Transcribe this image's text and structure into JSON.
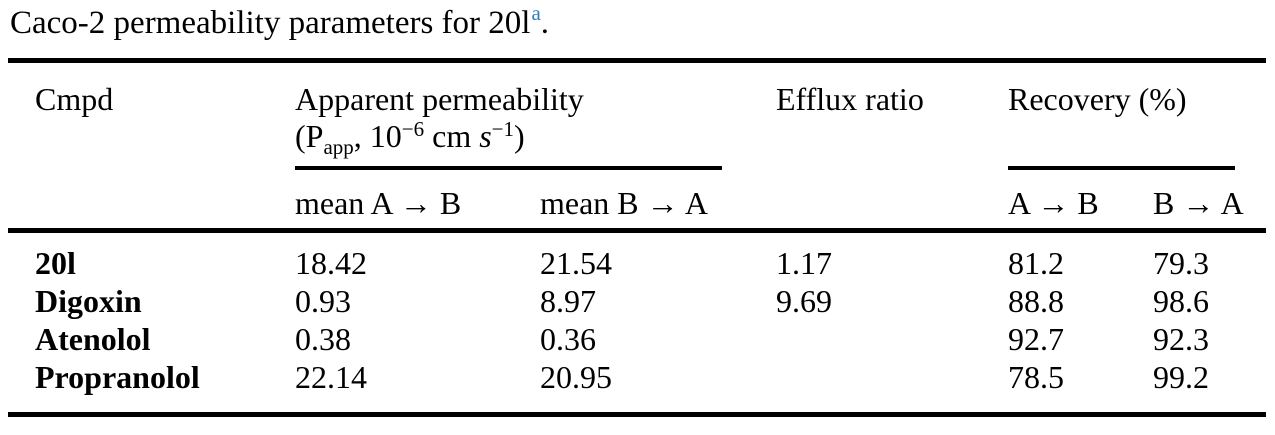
{
  "colors": {
    "text": "#000000",
    "rule": "#000000",
    "footnote_marker": "#2e7eb8",
    "background": "#ffffff"
  },
  "caption": {
    "text": "Caco-2 permeability parameters for 20l",
    "footnote_marker": "a",
    "period": "."
  },
  "table": {
    "headers": {
      "cmpd": "Cmpd",
      "apparent_permeability_line1": "Apparent permeability",
      "apparent_permeability_units": {
        "open_paren_p": "(P",
        "sub": "app",
        "comma_base": ", 10",
        "exp1": "−6",
        "cm": " cm ",
        "s": "s",
        "exp2": "−1",
        "close_paren": ")"
      },
      "efflux_ratio": "Efflux ratio",
      "recovery": "Recovery (%)",
      "sub_headers": {
        "mean_a_to_b": "mean A → B",
        "mean_b_to_a": "mean B → A",
        "recovery_a_to_b": "A → B",
        "recovery_b_to_a": "B → A"
      }
    },
    "rows": [
      {
        "name": "20l",
        "mean_ab": "18.42",
        "mean_ba": "21.54",
        "efflux": "1.17",
        "rec_ab": "81.2",
        "rec_ba": "79.3"
      },
      {
        "name": "Digoxin",
        "mean_ab": "0.93",
        "mean_ba": "8.97",
        "efflux": "9.69",
        "rec_ab": "88.8",
        "rec_ba": "98.6"
      },
      {
        "name": "Atenolol",
        "mean_ab": "0.38",
        "mean_ba": "0.36",
        "efflux": "",
        "rec_ab": "92.7",
        "rec_ba": "92.3"
      },
      {
        "name": "Propranolol",
        "mean_ab": "22.14",
        "mean_ba": "20.95",
        "efflux": "",
        "rec_ab": "78.5",
        "rec_ba": "99.2"
      }
    ]
  }
}
